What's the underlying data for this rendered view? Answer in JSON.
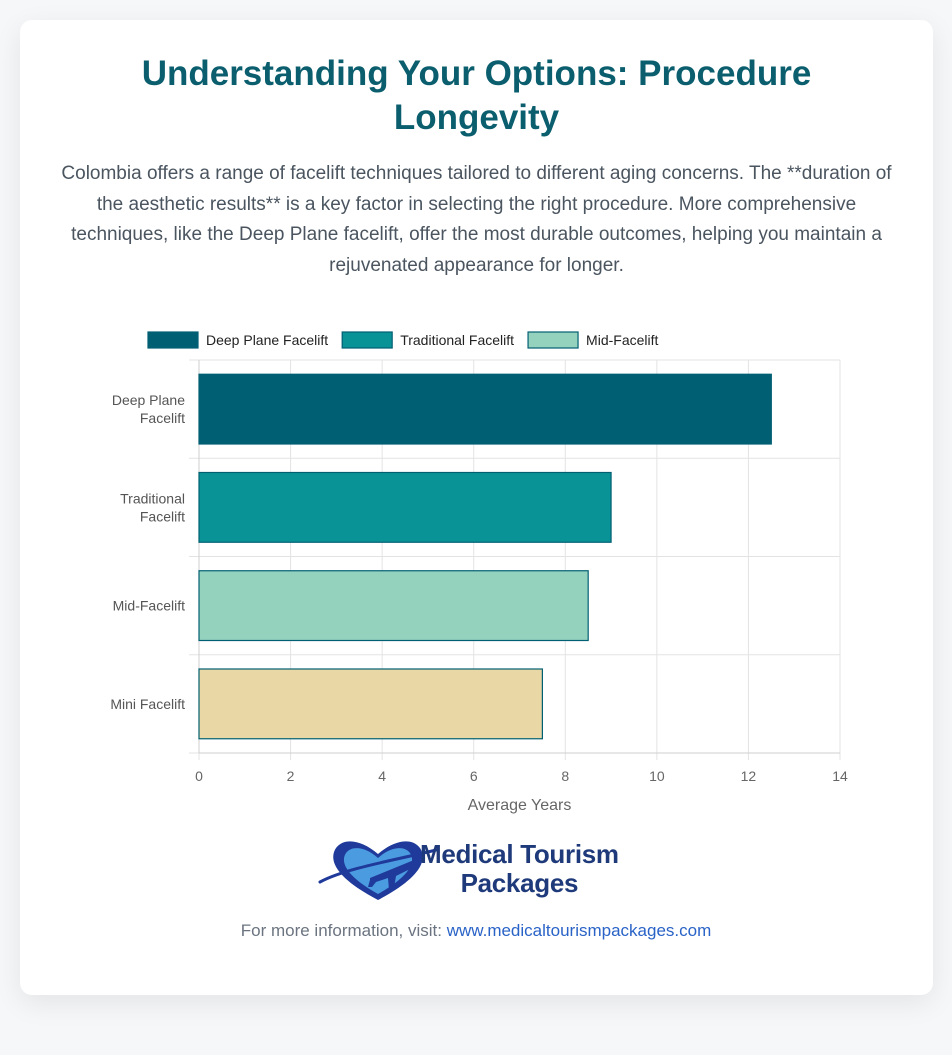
{
  "header": {
    "title": "Understanding Your Options: Procedure Longevity",
    "intro": "Colombia offers a range of facelift techniques tailored to different aging concerns. The **duration of the aesthetic results** is a key factor in selecting the right procedure. More comprehensive techniques, like the Deep Plane facelift, offer the most durable outcomes, helping you maintain a rejuvenated appearance for longer."
  },
  "chart_data": {
    "type": "bar",
    "orientation": "horizontal",
    "categories": [
      [
        "Deep Plane",
        "Facelift"
      ],
      [
        "Traditional",
        "Facelift"
      ],
      [
        "Mid-Facelift"
      ],
      [
        "Mini Facelift"
      ]
    ],
    "values": [
      12.5,
      9,
      8.5,
      7.5
    ],
    "colors": [
      "#005f73",
      "#0a9396",
      "#94d2bd",
      "#e9d8a6"
    ],
    "border_color": "#005f73",
    "legend": [
      {
        "label": "Deep Plane Facelift",
        "color": "#005f73"
      },
      {
        "label": "Traditional Facelift",
        "color": "#0a9396"
      },
      {
        "label": "Mid-Facelift",
        "color": "#94d2bd"
      }
    ],
    "xlabel": "Average Years",
    "xlim": [
      0,
      14
    ],
    "xticks": [
      0,
      2,
      4,
      6,
      8,
      10,
      12,
      14
    ],
    "grid": true,
    "legend_position": "top"
  },
  "logo": {
    "line1": "Medical Tourism",
    "line2": "Packages"
  },
  "footer": {
    "prefix": "For more information, visit:",
    "link": "www.medicaltourismpackages.com"
  }
}
